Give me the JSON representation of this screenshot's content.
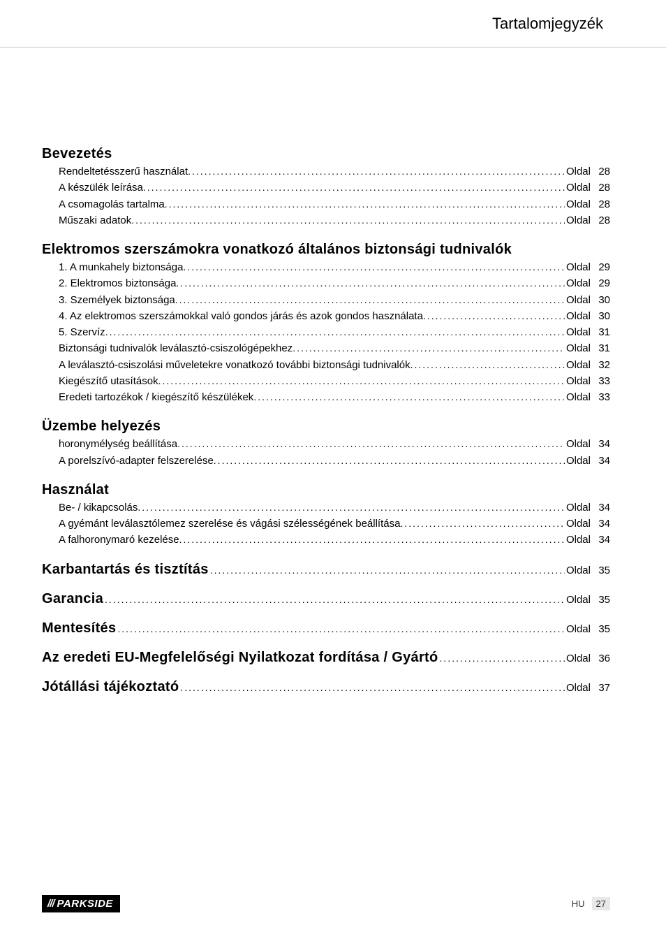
{
  "header": {
    "title": "Tartalomjegyzék"
  },
  "page_label": "Oldal",
  "sections": [
    {
      "heading": "Bevezetés",
      "inline_page": null,
      "items": [
        {
          "title": "Rendeltetésszerű használat",
          "page": 28
        },
        {
          "title": "A készülék leírása",
          "page": 28
        },
        {
          "title": "A csomagolás tartalma",
          "page": 28
        },
        {
          "title": "Műszaki adatok",
          "page": 28
        }
      ]
    },
    {
      "heading": "Elektromos szerszámokra vonatkozó általános biztonsági tudnivalók",
      "inline_page": null,
      "items": [
        {
          "title": "1. A munkahely biztonsága",
          "page": 29
        },
        {
          "title": "2. Elektromos biztonsága",
          "page": 29
        },
        {
          "title": "3. Személyek biztonsága",
          "page": 30
        },
        {
          "title": "4. Az elektromos szerszámokkal való gondos járás és azok gondos használata",
          "page": 30
        },
        {
          "title": "5. Szervíz",
          "page": 31
        },
        {
          "title": "Biztonsági tudnivalók leválasztó-csiszológépekhez",
          "page": 31
        },
        {
          "title": "A leválasztó-csiszolási műveletekre vonatkozó további biztonsági tudnivalók",
          "page": 32
        },
        {
          "title": "Kiegészítő utasítások",
          "page": 33
        },
        {
          "title": "Eredeti tartozékok / kiegészítő készülékek",
          "page": 33
        }
      ]
    },
    {
      "heading": "Üzembe helyezés",
      "inline_page": null,
      "items": [
        {
          "title": "horonymélység beállítása",
          "page": 34
        },
        {
          "title": "A porelszívó-adapter felszerelése",
          "page": 34
        }
      ]
    },
    {
      "heading": "Használat",
      "inline_page": null,
      "items": [
        {
          "title": "Be- / kikapcsolás",
          "page": 34
        },
        {
          "title": "A gyémánt leválasztólemez szerelése és vágási szélességének beállítása",
          "page": 34
        },
        {
          "title": "A falhoronymaró kezelése",
          "page": 34
        }
      ]
    },
    {
      "heading": "Karbantartás és tisztítás",
      "inline_page": 35,
      "items": []
    },
    {
      "heading": "Garancia",
      "inline_page": 35,
      "items": []
    },
    {
      "heading": "Mentesítés",
      "inline_page": 35,
      "items": []
    },
    {
      "heading": "Az eredeti EU-Megfelelőségi Nyilatkozat fordítása / Gyártó",
      "inline_page": 36,
      "items": []
    },
    {
      "heading": "Jótállási tájékoztató",
      "inline_page": 37,
      "items": []
    }
  ],
  "footer": {
    "brand_stripes": "///",
    "brand": "PARKSIDE",
    "lang": "HU",
    "page": 27
  }
}
